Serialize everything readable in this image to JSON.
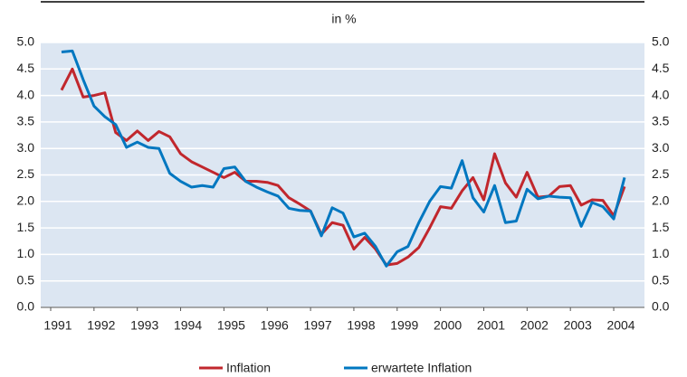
{
  "chart_data": {
    "type": "line",
    "title": "in %",
    "x": [
      1991.25,
      1991.5,
      1991.75,
      1992,
      1992.25,
      1992.5,
      1992.75,
      1993,
      1993.25,
      1993.5,
      1993.75,
      1994,
      1994.25,
      1994.5,
      1994.75,
      1995,
      1995.25,
      1995.5,
      1995.75,
      1996,
      1996.25,
      1996.5,
      1996.75,
      1997,
      1997.25,
      1997.5,
      1997.75,
      1998,
      1998.25,
      1998.5,
      1998.75,
      1999,
      1999.25,
      1999.5,
      1999.75,
      2000,
      2000.25,
      2000.5,
      2000.75,
      2001,
      2001.25,
      2001.5,
      2001.75,
      2002,
      2002.25,
      2002.5,
      2002.75,
      2003,
      2003.25,
      2003.5,
      2003.75,
      2004,
      2004.25
    ],
    "series": [
      {
        "name": "Inflation",
        "color": "#c1272d",
        "values": [
          4.1,
          4.5,
          3.97,
          4.0,
          4.05,
          3.3,
          3.15,
          3.33,
          3.15,
          3.32,
          3.22,
          2.9,
          2.75,
          2.65,
          2.55,
          2.45,
          2.55,
          2.38,
          2.38,
          2.36,
          2.3,
          2.07,
          1.95,
          1.82,
          1.38,
          1.6,
          1.55,
          1.1,
          1.32,
          1.1,
          0.8,
          0.83,
          0.95,
          1.13,
          1.5,
          1.9,
          1.87,
          2.2,
          2.45,
          2.03,
          2.9,
          2.35,
          2.08,
          2.55,
          2.08,
          2.1,
          2.28,
          2.3,
          1.93,
          2.03,
          2.02,
          1.73,
          2.28
        ]
      },
      {
        "name": "erwartete Inflation",
        "color": "#0077c0",
        "values": [
          4.82,
          4.84,
          4.3,
          3.8,
          3.6,
          3.45,
          3.02,
          3.12,
          3.02,
          3.0,
          2.53,
          2.38,
          2.27,
          2.3,
          2.27,
          2.62,
          2.65,
          2.38,
          2.27,
          2.18,
          2.1,
          1.87,
          1.83,
          1.82,
          1.35,
          1.88,
          1.78,
          1.33,
          1.4,
          1.15,
          0.78,
          1.05,
          1.15,
          1.6,
          2.0,
          2.28,
          2.25,
          2.77,
          2.07,
          1.8,
          2.3,
          1.6,
          1.63,
          2.23,
          2.05,
          2.1,
          2.08,
          2.07,
          1.53,
          1.98,
          1.9,
          1.67,
          2.45
        ]
      }
    ],
    "xlim": [
      1990.77,
      2004.71
    ],
    "xticks": [
      1991,
      1992,
      1993,
      1994,
      1995,
      1996,
      1997,
      1998,
      1999,
      2000,
      2001,
      2002,
      2003,
      2004
    ],
    "ylim": [
      0,
      5
    ],
    "yticks": [
      {
        "value": 0,
        "label": "0.0"
      },
      {
        "value": 0.5,
        "label": "0.5"
      },
      {
        "value": 1,
        "label": "1.0"
      },
      {
        "value": 1.5,
        "label": "1.5"
      },
      {
        "value": 2,
        "label": "2.0"
      },
      {
        "value": 2.5,
        "label": "2.5"
      },
      {
        "value": 3,
        "label": "3.0"
      },
      {
        "value": 3.5,
        "label": "3.5"
      },
      {
        "value": 4,
        "label": "4.0"
      },
      {
        "value": 4.5,
        "label": "4.5"
      },
      {
        "value": 5,
        "label": "5.0"
      }
    ],
    "grid": true,
    "plot_background": "#dce6f2",
    "legend": "bottom"
  }
}
